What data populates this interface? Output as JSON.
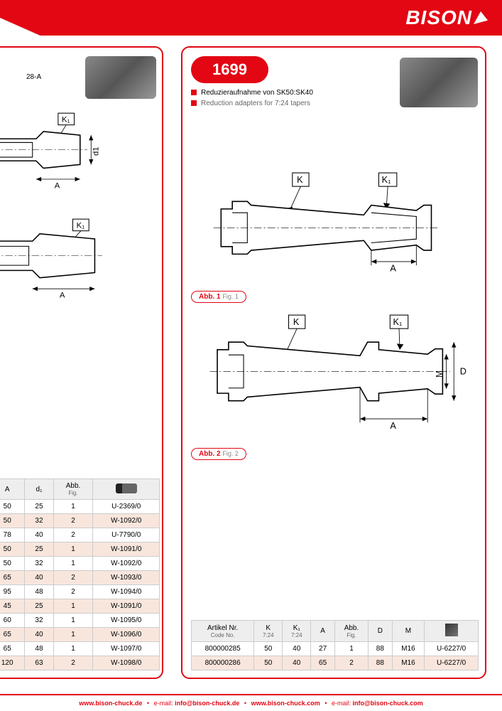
{
  "brand": "BISON",
  "left_card": {
    "code_fragment": "28-A",
    "table": {
      "headers": [
        "A",
        "d₁",
        "Abb.",
        ""
      ],
      "header_sub": [
        "",
        "",
        "Fig.",
        ""
      ],
      "rows": [
        {
          "a": "50",
          "d1": "25",
          "fig": "1",
          "code": "U-2369/0",
          "alt": false
        },
        {
          "a": "50",
          "d1": "32",
          "fig": "2",
          "code": "W-1092/0",
          "alt": true
        },
        {
          "a": "78",
          "d1": "40",
          "fig": "2",
          "code": "U-7790/0",
          "alt": false
        },
        {
          "a": "50",
          "d1": "25",
          "fig": "1",
          "code": "W-1091/0",
          "alt": true
        },
        {
          "a": "50",
          "d1": "32",
          "fig": "1",
          "code": "W-1092/0",
          "alt": false
        },
        {
          "a": "65",
          "d1": "40",
          "fig": "2",
          "code": "W-1093/0",
          "alt": true
        },
        {
          "a": "95",
          "d1": "48",
          "fig": "2",
          "code": "W-1094/0",
          "alt": false
        },
        {
          "a": "45",
          "d1": "25",
          "fig": "1",
          "code": "W-1091/0",
          "alt": true
        },
        {
          "a": "60",
          "d1": "32",
          "fig": "1",
          "code": "W-1095/0",
          "alt": false
        },
        {
          "a": "65",
          "d1": "40",
          "fig": "1",
          "code": "W-1096/0",
          "alt": true
        },
        {
          "a": "65",
          "d1": "48",
          "fig": "1",
          "code": "W-1097/0",
          "alt": false
        },
        {
          "a": "120",
          "d1": "63",
          "fig": "2",
          "code": "W-1098/0",
          "alt": true
        }
      ]
    }
  },
  "right_card": {
    "title": "1699",
    "desc_de": "Reduzieraufnahme von SK50:SK40",
    "desc_en": "Reduction adapters for 7:24 tapers",
    "fig1_label": "Abb. 1",
    "fig1_sub": "Fig. 1",
    "fig2_label": "Abb. 2",
    "fig2_sub": "Fig. 2",
    "table": {
      "headers": [
        "Artikel Nr.",
        "K",
        "K₁",
        "A",
        "Abb.",
        "D",
        "M",
        ""
      ],
      "header_sub": [
        "Code No.",
        "7:24",
        "7:24",
        "",
        "Fig.",
        "",
        "",
        ""
      ],
      "rows": [
        {
          "art": "800000285",
          "k": "50",
          "k1": "40",
          "a": "27",
          "fig": "1",
          "d": "88",
          "m": "M16",
          "code": "U-6227/0",
          "alt": false
        },
        {
          "art": "800000286",
          "k": "50",
          "k1": "40",
          "a": "65",
          "fig": "2",
          "d": "88",
          "m": "M16",
          "code": "U-6227/0",
          "alt": true
        }
      ]
    }
  },
  "footer": {
    "url_de": "www.bison-chuck.de",
    "email_de": "info@bison-chuck.de",
    "url_com": "www.bison-chuck.com",
    "email_com": "info@bison-chuck.com",
    "email_label": "e-mail:"
  },
  "colors": {
    "primary": "#e30613",
    "alt_row": "#f8e6dd",
    "border": "#ccc"
  }
}
